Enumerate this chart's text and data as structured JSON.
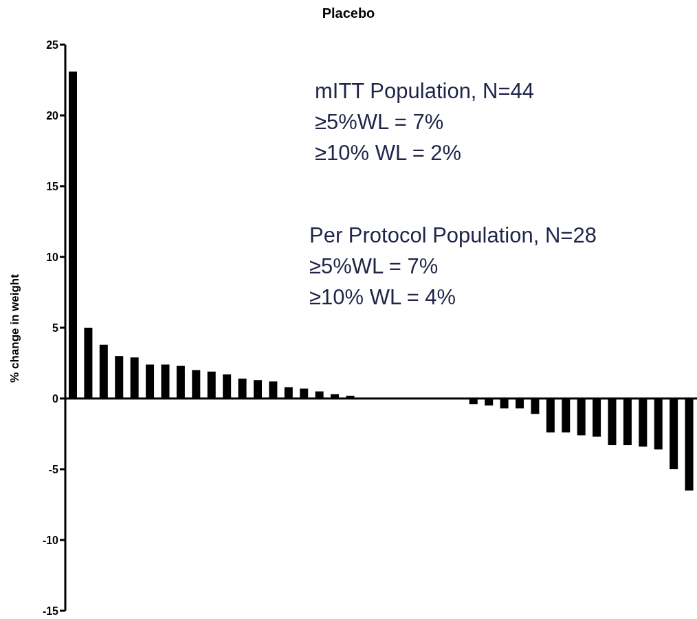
{
  "chart_data": {
    "type": "bar",
    "title": "Placebo",
    "ylabel": "% change in weight",
    "categories": [
      null,
      null,
      null,
      null,
      null,
      null,
      null,
      null,
      null,
      null,
      null,
      null,
      null,
      null,
      null,
      null,
      null,
      null,
      null,
      null,
      null,
      null,
      null,
      null,
      null,
      null,
      null,
      null,
      null,
      null,
      null,
      null,
      null,
      null,
      null,
      null,
      null,
      null,
      null,
      null,
      null
    ],
    "values": [
      23.1,
      5.0,
      3.8,
      3.0,
      2.9,
      2.4,
      2.4,
      2.3,
      2.0,
      1.9,
      1.7,
      1.4,
      1.3,
      1.2,
      0.8,
      0.7,
      0.5,
      0.3,
      0.2,
      0,
      0,
      0,
      0,
      0,
      0,
      0,
      -0.4,
      -0.5,
      -0.7,
      -0.7,
      -1.1,
      -2.4,
      -2.4,
      -2.6,
      -2.7,
      -3.3,
      -3.3,
      -3.4,
      -3.6,
      -5.0,
      -6.5
    ],
    "color": "#000000",
    "ylim": [
      -15,
      25
    ],
    "yticks": [
      -15,
      -10,
      -5,
      0,
      5,
      10,
      15,
      20,
      25
    ],
    "annotations": [
      "mITT Population, N=44",
      "≥5%WL = 7%",
      "≥10% WL = 2%",
      "Per Protocol Population, N=28",
      "≥5%WL = 7%",
      "≥10% WL = 4%"
    ]
  }
}
